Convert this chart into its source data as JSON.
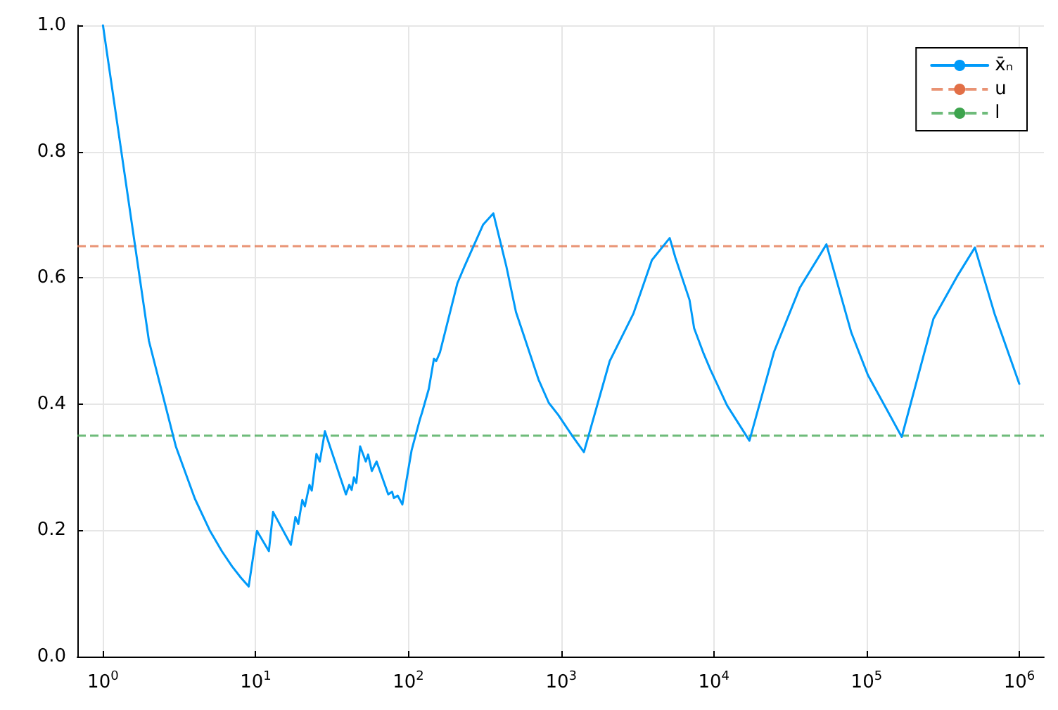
{
  "chart_data": {
    "type": "line",
    "log": "x",
    "grid": true,
    "legend": "top right",
    "line_style": "solid",
    "marker": "none",
    "xlim": [
      0.68,
      1450000
    ],
    "ylim": [
      0,
      1
    ],
    "xticks": [
      {
        "value": 1,
        "label": "10$^{0}$"
      },
      {
        "value": 10,
        "label": "10$^{1}$"
      },
      {
        "value": 100,
        "label": "10$^{2}$"
      },
      {
        "value": 1000,
        "label": "10$^{3}$"
      },
      {
        "value": 10000,
        "label": "10$^{4}$"
      },
      {
        "value": 100000,
        "label": "10$^{5}$"
      },
      {
        "value": 1000000,
        "label": "10$^{6}$"
      }
    ],
    "yticks": [
      {
        "value": 0,
        "label": "0.0"
      },
      {
        "value": 0.2,
        "label": "0.2"
      },
      {
        "value": 0.4,
        "label": "0.4"
      },
      {
        "value": 0.6,
        "label": "0.6"
      },
      {
        "value": 0.8,
        "label": "0.8"
      },
      {
        "value": 1,
        "label": "1.0"
      }
    ],
    "series": [
      {
        "name": "x̄ₙ",
        "color": "#009af9",
        "x": [
          1,
          2,
          3,
          4,
          5,
          6,
          7,
          8,
          9,
          10.2,
          12.2,
          13,
          17,
          18.2,
          19,
          20.2,
          21,
          22.5,
          23.3,
          25,
          26.3,
          28.4,
          39,
          41,
          42.5,
          44,
          45.6,
          48.3,
          52.6,
          54.5,
          57.6,
          61.9,
          73.8,
          78.2,
          80.4,
          85.1,
          91.3,
          105,
          119,
          123,
          136,
          147,
          152,
          161,
          209,
          232,
          308,
          360,
          439,
          506,
          562,
          711,
          830,
          957,
          1180,
          1410,
          2080,
          2970,
          3930,
          5140,
          5600,
          6930,
          7430,
          8570,
          9520,
          12200,
          17100,
          24800,
          36500,
          54600,
          79500,
          102000,
          170000,
          274000,
          391000,
          512000,
          689000,
          1000000
        ],
        "values": [
          1,
          0.5,
          0.333,
          0.25,
          0.2,
          0.167,
          0.143,
          0.125,
          0.111,
          0.199,
          0.167,
          0.229,
          0.177,
          0.221,
          0.21,
          0.248,
          0.238,
          0.272,
          0.263,
          0.321,
          0.309,
          0.357,
          0.257,
          0.272,
          0.264,
          0.284,
          0.275,
          0.333,
          0.309,
          0.32,
          0.294,
          0.309,
          0.257,
          0.261,
          0.251,
          0.255,
          0.241,
          0.327,
          0.376,
          0.387,
          0.424,
          0.472,
          0.468,
          0.482,
          0.591,
          0.617,
          0.684,
          0.702,
          0.617,
          0.546,
          0.513,
          0.439,
          0.402,
          0.383,
          0.35,
          0.324,
          0.468,
          0.543,
          0.628,
          0.663,
          0.632,
          0.565,
          0.52,
          0.48,
          0.454,
          0.398,
          0.342,
          0.483,
          0.584,
          0.653,
          0.513,
          0.446,
          0.348,
          0.535,
          0.602,
          0.648,
          0.543,
          0.432
        ]
      }
    ],
    "ref_lines": [
      {
        "axis": "y",
        "value": 0.65,
        "label": "u",
        "color": "#e26f46",
        "line_style": "dashed"
      },
      {
        "axis": "y",
        "value": 0.35,
        "label": "l",
        "color": "#3da44d",
        "line_style": "dashed"
      }
    ]
  }
}
